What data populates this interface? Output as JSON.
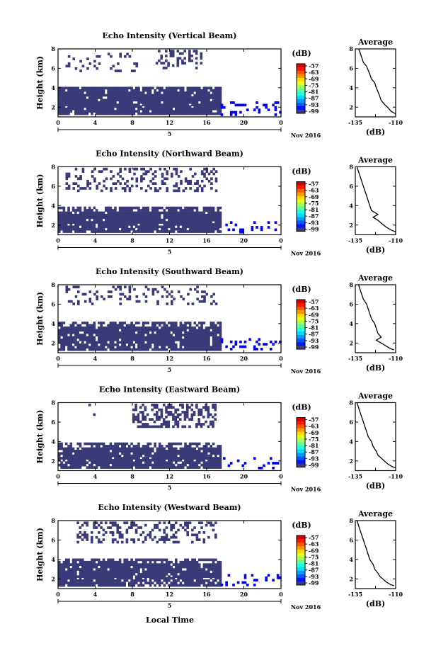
{
  "figure": {
    "xlabel": "Local Time",
    "date_label": "Nov 2016",
    "day_label": "5"
  },
  "chart_data": [
    {
      "type": "heatmap",
      "title": "Echo Intensity (Vertical Beam)",
      "ylabel": "Height (km)",
      "x_ticks": [
        "0",
        "4",
        "8",
        "12",
        "16",
        "20",
        "0"
      ],
      "y_ticks": [
        "2",
        "4",
        "6",
        "8"
      ],
      "xlim": [
        0,
        24
      ],
      "ylim": [
        1,
        8
      ],
      "colorbar": {
        "unit": "(dB)",
        "ticks": [
          "-57",
          "-63",
          "-69",
          "-75",
          "-81",
          "-87",
          "-93",
          "-99"
        ],
        "range": [
          -99,
          -57
        ]
      },
      "layers": [
        {
          "h": [
            1.3,
            2.2
          ],
          "t": [
            0,
            17.5
          ],
          "density": 0.93,
          "db": -98
        },
        {
          "h": [
            2.2,
            3.6
          ],
          "t": [
            0,
            17.5
          ],
          "density": 0.96,
          "db": -97
        },
        {
          "h": [
            3.6,
            4.1
          ],
          "t": [
            0,
            17.5
          ],
          "density": 0.8,
          "db": -98
        },
        {
          "h": [
            1.3,
            2.6
          ],
          "t": [
            17.5,
            24
          ],
          "density": 0.22,
          "db": -96
        },
        {
          "h": [
            5.8,
            7.6
          ],
          "t": [
            0.8,
            8.5
          ],
          "density": 0.12,
          "db": -98
        },
        {
          "h": [
            6.0,
            7.9
          ],
          "t": [
            10.5,
            15.5
          ],
          "density": 0.33,
          "db": -98
        }
      ],
      "profile": {
        "title": "Average",
        "xlabel": "(dB)",
        "x_ticks": [
          "-135",
          "-110"
        ],
        "y_ticks": [
          "2",
          "4",
          "6",
          "8"
        ],
        "xlim": [
          -135,
          -110
        ],
        "ylim": [
          1,
          8
        ],
        "db": [
          -133,
          -132,
          -131,
          -130,
          -128,
          -127,
          -126,
          -125,
          -123,
          -122,
          -121,
          -120,
          -119,
          -117,
          -115,
          -113,
          -111,
          -110
        ],
        "height": [
          8.0,
          7.6,
          7.1,
          6.6,
          6.2,
          5.8,
          5.4,
          4.9,
          4.5,
          4.0,
          3.6,
          3.2,
          2.7,
          2.3,
          2.0,
          1.6,
          1.4,
          1.3
        ]
      }
    },
    {
      "type": "heatmap",
      "title": "Echo Intensity (Northward Beam)",
      "ylabel": "Height (km)",
      "x_ticks": [
        "0",
        "4",
        "8",
        "12",
        "16",
        "20",
        "0"
      ],
      "y_ticks": [
        "2",
        "4",
        "6",
        "8"
      ],
      "xlim": [
        0,
        24
      ],
      "ylim": [
        1,
        8
      ],
      "colorbar": {
        "unit": "(dB)",
        "ticks": [
          "-57",
          "-63",
          "-69",
          "-75",
          "-81",
          "-87",
          "-93",
          "-99"
        ],
        "range": [
          -99,
          -57
        ]
      },
      "layers": [
        {
          "h": [
            1.3,
            2.2
          ],
          "t": [
            0,
            17.5
          ],
          "density": 0.9,
          "db": -98
        },
        {
          "h": [
            2.2,
            3.4
          ],
          "t": [
            0,
            17.5
          ],
          "density": 0.96,
          "db": -97
        },
        {
          "h": [
            3.4,
            3.9
          ],
          "t": [
            0,
            17.5
          ],
          "density": 0.75,
          "db": -98
        },
        {
          "h": [
            1.3,
            2.4
          ],
          "t": [
            17.5,
            24
          ],
          "density": 0.12,
          "db": -96
        },
        {
          "h": [
            5.6,
            7.9
          ],
          "t": [
            0.8,
            17.0
          ],
          "density": 0.3,
          "db": -98
        }
      ],
      "profile": {
        "title": "Average",
        "xlabel": "(dB)",
        "x_ticks": [
          "-135",
          "-110"
        ],
        "y_ticks": [
          "2",
          "4",
          "6",
          "8"
        ],
        "xlim": [
          -135,
          -110
        ],
        "ylim": [
          1,
          8
        ],
        "db": [
          -134,
          -133,
          -132,
          -131,
          -130,
          -129,
          -128,
          -127,
          -126,
          -125,
          -121,
          -124,
          -121,
          -119,
          -116,
          -113,
          -110
        ],
        "height": [
          8.0,
          7.5,
          7.0,
          6.5,
          6.0,
          5.5,
          5.0,
          4.5,
          4.0,
          3.5,
          3.1,
          2.8,
          2.5,
          2.2,
          1.8,
          1.5,
          1.3
        ]
      }
    },
    {
      "type": "heatmap",
      "title": "Echo Intensity (Southward Beam)",
      "ylabel": "Height (km)",
      "x_ticks": [
        "0",
        "4",
        "8",
        "12",
        "16",
        "20",
        "0"
      ],
      "y_ticks": [
        "2",
        "4",
        "6",
        "8"
      ],
      "xlim": [
        0,
        24
      ],
      "ylim": [
        1,
        8
      ],
      "colorbar": {
        "unit": "(dB)",
        "ticks": [
          "-57",
          "-63",
          "-69",
          "-75",
          "-81",
          "-87",
          "-93",
          "-99"
        ],
        "range": [
          -99,
          -57
        ]
      },
      "layers": [
        {
          "h": [
            1.3,
            2.2
          ],
          "t": [
            0,
            17.5
          ],
          "density": 0.88,
          "db": -98
        },
        {
          "h": [
            2.2,
            3.7
          ],
          "t": [
            0,
            17.5
          ],
          "density": 0.94,
          "db": -97
        },
        {
          "h": [
            3.7,
            4.2
          ],
          "t": [
            0,
            17.5
          ],
          "density": 0.6,
          "db": -98
        },
        {
          "h": [
            1.3,
            2.5
          ],
          "t": [
            17.5,
            24
          ],
          "density": 0.18,
          "db": -96
        },
        {
          "h": [
            6.0,
            7.9
          ],
          "t": [
            0.8,
            17.0
          ],
          "density": 0.18,
          "db": -98
        }
      ],
      "profile": {
        "title": "Average",
        "xlabel": "(dB)",
        "x_ticks": [
          "-135",
          "-110"
        ],
        "y_ticks": [
          "2",
          "4",
          "6",
          "8"
        ],
        "xlim": [
          -135,
          -110
        ],
        "ylim": [
          1,
          8
        ],
        "db": [
          -133,
          -132,
          -131,
          -130,
          -128,
          -127,
          -126,
          -125,
          -123,
          -122,
          -121,
          -119,
          -122,
          -119,
          -116,
          -113,
          -111
        ],
        "height": [
          8.0,
          7.5,
          7.0,
          6.5,
          6.0,
          5.5,
          5.0,
          4.5,
          4.0,
          3.5,
          3.0,
          2.6,
          2.3,
          2.0,
          1.7,
          1.4,
          1.3
        ]
      }
    },
    {
      "type": "heatmap",
      "title": "Echo Intensity (Eastward Beam)",
      "ylabel": "Height (km)",
      "x_ticks": [
        "0",
        "4",
        "8",
        "12",
        "16",
        "20",
        "0"
      ],
      "y_ticks": [
        "2",
        "4",
        "6",
        "8"
      ],
      "xlim": [
        0,
        24
      ],
      "ylim": [
        1,
        8
      ],
      "colorbar": {
        "unit": "(dB)",
        "ticks": [
          "-57",
          "-63",
          "-69",
          "-75",
          "-81",
          "-87",
          "-93",
          "-99"
        ],
        "range": [
          -99,
          -57
        ]
      },
      "layers": [
        {
          "h": [
            1.3,
            2.2
          ],
          "t": [
            0,
            17.5
          ],
          "density": 0.88,
          "db": -98
        },
        {
          "h": [
            2.2,
            3.4
          ],
          "t": [
            0,
            17.5
          ],
          "density": 0.94,
          "db": -97
        },
        {
          "h": [
            3.4,
            3.9
          ],
          "t": [
            0,
            17.5
          ],
          "density": 0.6,
          "db": -98
        },
        {
          "h": [
            1.3,
            2.4
          ],
          "t": [
            17.5,
            24
          ],
          "density": 0.1,
          "db": -96
        },
        {
          "h": [
            5.6,
            7.9
          ],
          "t": [
            8.0,
            17.0
          ],
          "density": 0.45,
          "db": -98
        },
        {
          "h": [
            6.8,
            7.9
          ],
          "t": [
            0.5,
            4.0
          ],
          "density": 0.08,
          "db": -98
        }
      ],
      "profile": {
        "title": "Average",
        "xlabel": "(dB)",
        "x_ticks": [
          "-135",
          "-110"
        ],
        "y_ticks": [
          "2",
          "4",
          "6",
          "8"
        ],
        "xlim": [
          -135,
          -110
        ],
        "ylim": [
          1,
          8
        ],
        "db": [
          -134,
          -133,
          -132,
          -131,
          -130,
          -129,
          -128,
          -127,
          -125,
          -124,
          -122,
          -121,
          -119,
          -117,
          -115,
          -112,
          -110
        ],
        "height": [
          8.0,
          7.5,
          7.0,
          6.5,
          6.0,
          5.5,
          5.0,
          4.5,
          4.0,
          3.5,
          3.0,
          2.6,
          2.3,
          2.0,
          1.7,
          1.4,
          1.3
        ]
      }
    },
    {
      "type": "heatmap",
      "title": "Echo Intensity (Westward Beam)",
      "ylabel": "Height (km)",
      "x_ticks": [
        "0",
        "4",
        "8",
        "12",
        "16",
        "20",
        "0"
      ],
      "y_ticks": [
        "2",
        "4",
        "6",
        "8"
      ],
      "xlim": [
        0,
        24
      ],
      "ylim": [
        1,
        8
      ],
      "colorbar": {
        "unit": "(dB)",
        "ticks": [
          "-57",
          "-63",
          "-69",
          "-75",
          "-81",
          "-87",
          "-93",
          "-99"
        ],
        "range": [
          -99,
          -57
        ]
      },
      "layers": [
        {
          "h": [
            1.3,
            2.2
          ],
          "t": [
            0,
            17.5
          ],
          "density": 0.88,
          "db": -98
        },
        {
          "h": [
            2.2,
            3.6
          ],
          "t": [
            0,
            17.5
          ],
          "density": 0.94,
          "db": -97
        },
        {
          "h": [
            3.6,
            4.1
          ],
          "t": [
            0,
            17.5
          ],
          "density": 0.6,
          "db": -98
        },
        {
          "h": [
            1.3,
            2.5
          ],
          "t": [
            17.5,
            24
          ],
          "density": 0.15,
          "db": -96
        },
        {
          "h": [
            5.8,
            7.9
          ],
          "t": [
            2.0,
            17.0
          ],
          "density": 0.3,
          "db": -98
        }
      ],
      "profile": {
        "title": "Average",
        "xlabel": "(dB)",
        "x_ticks": [
          "-135",
          "-110"
        ],
        "y_ticks": [
          "2",
          "4",
          "6",
          "8"
        ],
        "xlim": [
          -135,
          -110
        ],
        "ylim": [
          1,
          8
        ],
        "db": [
          -134,
          -133,
          -132,
          -131,
          -130,
          -129,
          -128,
          -127,
          -126,
          -124,
          -123,
          -121,
          -120,
          -118,
          -116,
          -113,
          -111
        ],
        "height": [
          8.0,
          7.5,
          7.0,
          6.5,
          6.0,
          5.5,
          5.0,
          4.5,
          4.0,
          3.5,
          3.0,
          2.6,
          2.3,
          2.0,
          1.7,
          1.4,
          1.3
        ]
      }
    }
  ]
}
